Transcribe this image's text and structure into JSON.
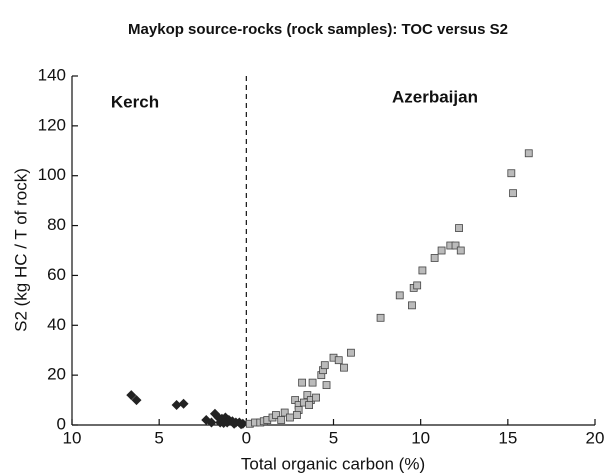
{
  "chart_data": {
    "type": "scatter",
    "title": "Maykop source-rocks (rock samples): TOC versus S2",
    "xlabel": "Total organic carbon (%)",
    "ylabel": "S2 (kg HC / T of rock)",
    "annotations": [
      "Kerch",
      "Azerbaijan"
    ],
    "xlim": [
      -10,
      20
    ],
    "ylim": [
      0,
      140
    ],
    "xticks": [
      {
        "value": -10,
        "label": "10"
      },
      {
        "value": -5,
        "label": "5"
      },
      0,
      5,
      10,
      15,
      20
    ],
    "yticks": [
      0,
      20,
      40,
      60,
      80,
      100,
      120,
      140
    ],
    "divider_x": 0,
    "series": [
      {
        "name": "Kerch",
        "color": "#222222",
        "marker": "diamond",
        "x": [
          -6.6,
          -6.3,
          -4,
          -3.6,
          -2.3,
          -1.8,
          -1.6,
          -1.4,
          -1.2,
          -1,
          -0.8,
          -0.6,
          -0.4,
          -0.2,
          -1.5,
          -1.1,
          -0.7,
          -0.3,
          -2,
          -1.3
        ],
        "values": [
          12,
          10,
          8,
          8.5,
          2,
          4.5,
          3,
          2.5,
          3,
          2,
          1.5,
          1,
          1,
          0.5,
          1,
          1,
          0.5,
          0.3,
          1,
          0.8
        ]
      },
      {
        "name": "Azerbaijan",
        "color": "#bbbbbb",
        "marker": "square",
        "x": [
          0.2,
          0.5,
          0.8,
          1,
          1.2,
          1.5,
          1.7,
          2,
          2.2,
          2.5,
          2.8,
          3,
          3.2,
          3,
          3.3,
          3.5,
          3.7,
          3.8,
          4,
          3.6,
          4.3,
          4.4,
          4.5,
          4.6,
          5,
          5.3,
          5.6,
          6,
          7.7,
          8.8,
          9.5,
          9.6,
          9.8,
          10.1,
          10.8,
          11.2,
          11.7,
          12,
          12.2,
          12.3,
          15.2,
          15.3,
          16.2,
          2.9
        ],
        "values": [
          0.5,
          1,
          1,
          1.5,
          2,
          3,
          4,
          2,
          5,
          3,
          10,
          8,
          17,
          6,
          9,
          12,
          10,
          17,
          11,
          8,
          20,
          22,
          24,
          16,
          27,
          26,
          23,
          29,
          43,
          52,
          48,
          55,
          56,
          62,
          67,
          70,
          72,
          72,
          79,
          70,
          101,
          93,
          109,
          4
        ]
      }
    ]
  }
}
